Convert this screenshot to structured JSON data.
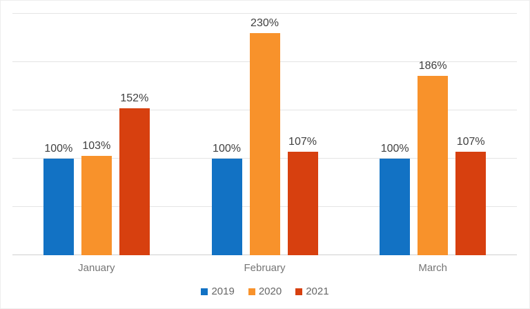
{
  "chart_data": {
    "type": "bar",
    "title": "",
    "xlabel": "",
    "ylabel": "",
    "categories": [
      "January",
      "February",
      "March"
    ],
    "series": [
      {
        "name": "2019",
        "color": "#1272C4",
        "values": [
          100,
          100,
          100
        ],
        "labels": [
          "100%",
          "100%",
          "100%"
        ]
      },
      {
        "name": "2020",
        "color": "#F8922B",
        "values": [
          103,
          230,
          186
        ],
        "labels": [
          "103%",
          "230%",
          "186%"
        ]
      },
      {
        "name": "2021",
        "color": "#D7400F",
        "values": [
          152,
          107,
          107
        ],
        "labels": [
          "152%",
          "107%",
          "107%"
        ]
      }
    ],
    "value_suffix": "%",
    "ylim": [
      0,
      250
    ],
    "gridline_step": 50,
    "grid": true,
    "y_axis_labels_visible": false,
    "legend_position": "bottom",
    "legend_entries": [
      "2019",
      "2020",
      "2021"
    ]
  },
  "colors": {
    "series_2019": "#1272C4",
    "series_2020": "#F8922B",
    "series_2021": "#D7400F",
    "gridline": "#e4e4e4",
    "axis_line": "#cfcfcf",
    "data_label_text": "#3f3f3f",
    "category_label_text": "#757575",
    "legend_text": "#666666",
    "background": "#ffffff"
  }
}
